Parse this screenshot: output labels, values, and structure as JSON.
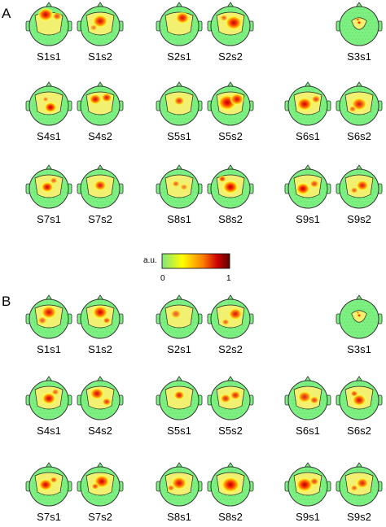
{
  "figure": {
    "panels": [
      {
        "letter": "A",
        "rows": [
          [
            {
              "label": "S1s1",
              "blobs": [
                [
                  -4,
                  -12,
                  10,
                  0.95
                ],
                [
                  10,
                  -10,
                  6,
                  0.7
                ]
              ]
            },
            {
              "label": "S1s2",
              "blobs": [
                [
                  0,
                  -4,
                  10,
                  0.9
                ],
                [
                  -8,
                  4,
                  5,
                  0.5
                ]
              ]
            },
            {
              "label": "S2s1",
              "blobs": [
                [
                  4,
                  -8,
                  9,
                  0.9
                ]
              ]
            },
            {
              "label": "S2s2",
              "blobs": [
                [
                  4,
                  -2,
                  11,
                  0.95
                ],
                [
                  -8,
                  -8,
                  5,
                  0.6
                ]
              ]
            },
            null,
            {
              "label": "S3s1",
              "blobs": [
                [
                  0,
                  -4,
                  5,
                  1.0
                ],
                [
                  -3,
                  -11,
                  5,
                  0.7
                ]
              ],
              "small": true
            }
          ],
          [
            {
              "label": "S4s1",
              "blobs": [
                [
                  2,
                  4,
                  8,
                  1.0
                ],
                [
                  -4,
                  -6,
                  4,
                  0.5
                ]
              ]
            },
            {
              "label": "S4s2",
              "blobs": [
                [
                  -6,
                  -6,
                  8,
                  0.9
                ],
                [
                  8,
                  -8,
                  7,
                  0.85
                ]
              ]
            },
            {
              "label": "S5s1",
              "blobs": [
                [
                  0,
                  -4,
                  7,
                  0.75
                ]
              ]
            },
            {
              "label": "S5s2",
              "blobs": [
                [
                  -4,
                  -2,
                  12,
                  1.0
                ],
                [
                  8,
                  -6,
                  9,
                  0.9
                ]
              ]
            },
            {
              "label": "S6s1",
              "blobs": [
                [
                  -4,
                  0,
                  10,
                  0.95
                ],
                [
                  10,
                  -6,
                  6,
                  0.7
                ]
              ]
            },
            {
              "label": "S6s2",
              "blobs": [
                [
                  0,
                  0,
                  10,
                  0.85
                ],
                [
                  -8,
                  6,
                  5,
                  0.6
                ]
              ]
            }
          ],
          [
            {
              "label": "S7s1",
              "blobs": [
                [
                  -2,
                  0,
                  8,
                  0.95
                ],
                [
                  6,
                  -8,
                  5,
                  0.6
                ]
              ]
            },
            {
              "label": "S7s2",
              "blobs": [
                [
                  0,
                  -2,
                  8,
                  0.85
                ]
              ]
            },
            {
              "label": "S8s1",
              "blobs": [
                [
                  -4,
                  -4,
                  5,
                  0.6
                ],
                [
                  6,
                  0,
                  5,
                  0.5
                ]
              ]
            },
            {
              "label": "S8s2",
              "blobs": [
                [
                  0,
                  0,
                  10,
                  1.0
                ],
                [
                  -10,
                  -10,
                  5,
                  0.8
                ]
              ]
            },
            {
              "label": "S9s1",
              "blobs": [
                [
                  -6,
                  2,
                  9,
                  1.0
                ],
                [
                  8,
                  -4,
                  6,
                  0.7
                ]
              ]
            },
            {
              "label": "S9s2",
              "blobs": [
                [
                  4,
                  -2,
                  8,
                  0.85
                ],
                [
                  -6,
                  4,
                  5,
                  0.6
                ]
              ]
            }
          ]
        ]
      },
      {
        "letter": "B",
        "rows": [
          [
            {
              "label": "S1s1",
              "blobs": [
                [
                  0,
                  -6,
                  10,
                  0.9
                ],
                [
                  -8,
                  4,
                  6,
                  0.6
                ]
              ]
            },
            {
              "label": "S1s2",
              "blobs": [
                [
                  0,
                  -6,
                  10,
                  0.95
                ],
                [
                  8,
                  4,
                  5,
                  0.7
                ]
              ]
            },
            {
              "label": "S2s1",
              "blobs": [
                [
                  -4,
                  -4,
                  7,
                  0.6
                ]
              ]
            },
            {
              "label": "S2s2",
              "blobs": [
                [
                  6,
                  -4,
                  9,
                  0.85
                ],
                [
                  -6,
                  6,
                  5,
                  0.6
                ]
              ]
            },
            null,
            {
              "label": "S3s1",
              "blobs": [
                [
                  0,
                  -4,
                  5,
                  0.9
                ],
                [
                  -3,
                  -10,
                  4,
                  0.5
                ]
              ],
              "small": true
            }
          ],
          [
            {
              "label": "S4s1",
              "blobs": [
                [
                  0,
                  0,
                  9,
                  0.95
                ],
                [
                  8,
                  -8,
                  5,
                  0.6
                ]
              ]
            },
            {
              "label": "S4s2",
              "blobs": [
                [
                  -4,
                  -6,
                  9,
                  0.9
                ],
                [
                  8,
                  4,
                  6,
                  0.75
                ]
              ]
            },
            {
              "label": "S5s1",
              "blobs": [
                [
                  0,
                  -4,
                  7,
                  0.85
                ]
              ]
            },
            {
              "label": "S5s2",
              "blobs": [
                [
                  -6,
                  0,
                  7,
                  0.8
                ],
                [
                  6,
                  -4,
                  7,
                  0.8
                ]
              ]
            },
            {
              "label": "S6s1",
              "blobs": [
                [
                  -4,
                  -2,
                  9,
                  0.8
                ],
                [
                  8,
                  2,
                  6,
                  0.7
                ]
              ]
            },
            {
              "label": "S6s2",
              "blobs": [
                [
                  0,
                  2,
                  9,
                  0.9
                ],
                [
                  -6,
                  -6,
                  5,
                  0.7
                ]
              ]
            }
          ],
          [
            {
              "label": "S7s1",
              "blobs": [
                [
                  -4,
                  0,
                  9,
                  0.95
                ],
                [
                  6,
                  -6,
                  5,
                  0.7
                ]
              ]
            },
            {
              "label": "S7s2",
              "blobs": [
                [
                  2,
                  -4,
                  10,
                  0.95
                ],
                [
                  -6,
                  2,
                  5,
                  0.7
                ]
              ]
            },
            {
              "label": "S8s1",
              "blobs": [
                [
                  0,
                  -2,
                  10,
                  0.9
                ],
                [
                  -10,
                  4,
                  5,
                  0.6
                ]
              ]
            },
            {
              "label": "S8s2",
              "blobs": [
                [
                  0,
                  0,
                  12,
                  1.0
                ]
              ]
            },
            {
              "label": "S9s1",
              "blobs": [
                [
                  -4,
                  0,
                  11,
                  1.0
                ],
                [
                  8,
                  -4,
                  6,
                  0.7
                ]
              ]
            },
            {
              "label": "S9s2",
              "blobs": [
                [
                  4,
                  -2,
                  8,
                  0.8
                ],
                [
                  -6,
                  4,
                  5,
                  0.6
                ]
              ]
            }
          ]
        ]
      }
    ],
    "colorbar": {
      "unit": "a.u.",
      "min_label": "0",
      "max_label": "1",
      "stops": [
        "#7fe57f",
        "#ffff00",
        "#ff8000",
        "#cc0000",
        "#5a0000"
      ]
    },
    "colors": {
      "head_fill": "#7cf080",
      "outline": "#333333",
      "dot": "#2e8b2e"
    }
  }
}
